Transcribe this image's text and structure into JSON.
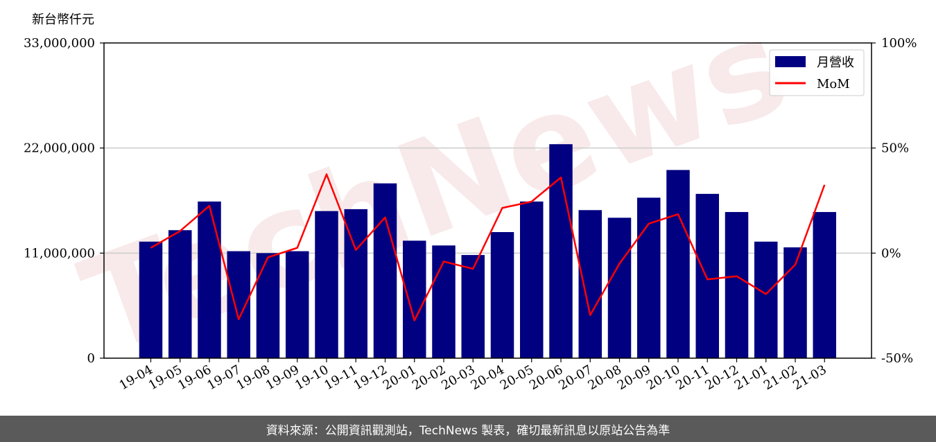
{
  "chart_data": {
    "type": "bar",
    "y_unit_label": "新台幣仟元",
    "categories": [
      "19-04",
      "19-05",
      "19-06",
      "19-07",
      "19-08",
      "19-09",
      "19-10",
      "19-11",
      "19-12",
      "20-01",
      "20-02",
      "20-03",
      "20-04",
      "20-05",
      "20-06",
      "20-07",
      "20-08",
      "20-09",
      "20-10",
      "20-11",
      "20-12",
      "21-01",
      "21-02",
      "21-03"
    ],
    "series": [
      {
        "name": "月營收",
        "type": "bar",
        "axis": "left",
        "color": "#000080",
        "values": [
          12200000,
          13400000,
          16400000,
          11200000,
          11000000,
          11200000,
          15400000,
          15600000,
          18300000,
          12300000,
          11800000,
          10800000,
          13200000,
          16400000,
          22400000,
          15500000,
          14700000,
          16800000,
          19700000,
          17200000,
          15300000,
          12200000,
          11600000,
          15300000
        ]
      },
      {
        "name": "MoM",
        "type": "line",
        "axis": "right",
        "color": "#ff0000",
        "values": [
          2.5,
          10.5,
          22.5,
          -31.5,
          -2,
          2.5,
          37.5,
          1.5,
          17,
          -32,
          -4,
          -7.5,
          21.5,
          24.5,
          36,
          -29.5,
          -5,
          14,
          18.5,
          -12.5,
          -11,
          -19.5,
          -5.5,
          32.5
        ]
      }
    ],
    "y_left": {
      "min": 0,
      "max": 33000000,
      "ticks": [
        "0",
        "11,000,000",
        "22,000,000",
        "33,000,000"
      ]
    },
    "y_right": {
      "min": -50,
      "max": 100,
      "ticks": [
        "-50%",
        "0%",
        "50%",
        "100%"
      ]
    },
    "grid": true,
    "legend_position": "top-right",
    "watermark": "TechNews"
  },
  "footer_text": "資料來源：公開資訊觀測站，TechNews 製表，確切最新訊息以原站公告為準"
}
